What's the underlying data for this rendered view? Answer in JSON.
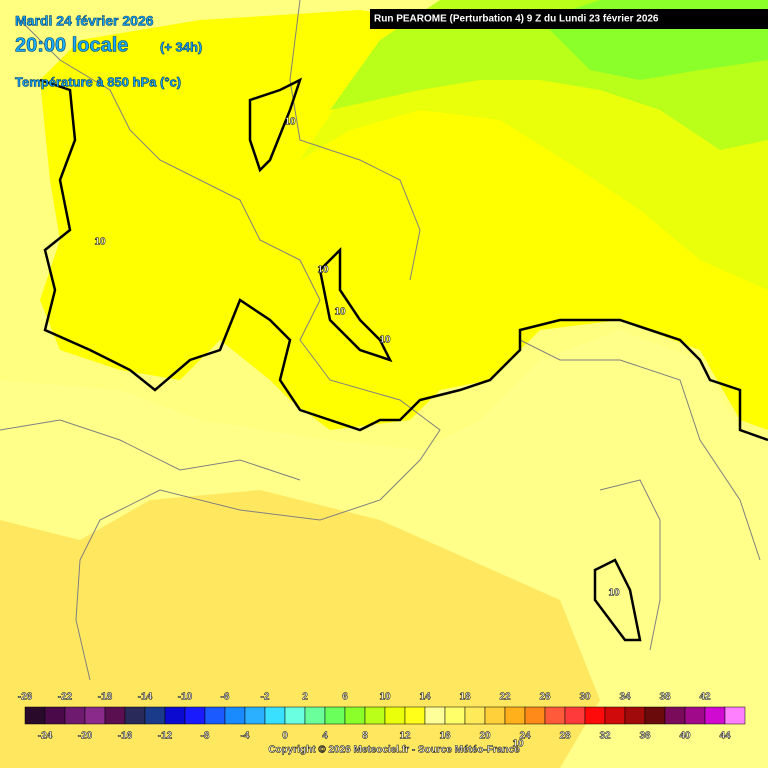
{
  "header": {
    "date": "Mardi 24 février 2026",
    "time": "20:00 locale",
    "lead": "(+ 34h)",
    "field": "Température à 850 hPa (°c)",
    "run": "Run PEAROME (Perturbation 4) 9 Z du Lundi 23 février 2026"
  },
  "contour_labels": [
    "10",
    "10",
    "10",
    "10",
    "10",
    "10",
    "10"
  ],
  "legend": {
    "labels": [
      -26,
      -24,
      -22,
      -20,
      -18,
      -16,
      -14,
      -12,
      -10,
      -8,
      -6,
      -4,
      -2,
      0,
      2,
      4,
      6,
      8,
      10,
      12,
      14,
      16,
      18,
      20,
      22,
      24,
      26,
      28,
      30,
      32,
      34,
      36,
      38,
      40,
      42,
      44
    ],
    "colors": [
      "#2a0a2a",
      "#4a0a4a",
      "#6e1a6e",
      "#8a2a8a",
      "#5a1050",
      "#2a2a5a",
      "#1a3a8a",
      "#0a0ad0",
      "#1a1aff",
      "#1a5aff",
      "#1a8aff",
      "#2ab0ff",
      "#3ae0ff",
      "#6affe0",
      "#6aff9a",
      "#6aff5a",
      "#8aff2a",
      "#baff1a",
      "#eaff0a",
      "#ffff1a",
      "#ffff9a",
      "#ffff6a",
      "#ffea5a",
      "#ffd03a",
      "#ffb01a",
      "#ff8a1a",
      "#ff5a3a",
      "#ff3a3a",
      "#ff0a0a",
      "#d00a0a",
      "#a00a0a",
      "#6a0a0a",
      "#7a0a5a",
      "#a00a8a",
      "#d00ad0",
      "#ff80ff"
    ]
  },
  "footer": {
    "copyright": "Copyright © 2026 Meteociel.fr - Source Météo-France"
  }
}
